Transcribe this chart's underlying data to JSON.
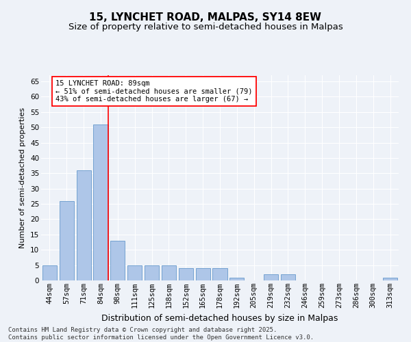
{
  "title": "15, LYNCHET ROAD, MALPAS, SY14 8EW",
  "subtitle": "Size of property relative to semi-detached houses in Malpas",
  "xlabel": "Distribution of semi-detached houses by size in Malpas",
  "ylabel": "Number of semi-detached properties",
  "categories": [
    "44sqm",
    "57sqm",
    "71sqm",
    "84sqm",
    "98sqm",
    "111sqm",
    "125sqm",
    "138sqm",
    "152sqm",
    "165sqm",
    "178sqm",
    "192sqm",
    "205sqm",
    "219sqm",
    "232sqm",
    "246sqm",
    "259sqm",
    "273sqm",
    "286sqm",
    "300sqm",
    "313sqm"
  ],
  "values": [
    5,
    26,
    36,
    51,
    13,
    5,
    5,
    5,
    4,
    4,
    4,
    1,
    0,
    2,
    2,
    0,
    0,
    0,
    0,
    0,
    1
  ],
  "bar_color": "#aec6e8",
  "bar_edge_color": "#6699cc",
  "vline_index": 3,
  "vline_color": "red",
  "annotation_text": "15 LYNCHET ROAD: 89sqm\n← 51% of semi-detached houses are smaller (79)\n43% of semi-detached houses are larger (67) →",
  "ylim_max": 67,
  "yticks": [
    0,
    5,
    10,
    15,
    20,
    25,
    30,
    35,
    40,
    45,
    50,
    55,
    60,
    65
  ],
  "background_color": "#eef2f8",
  "grid_color": "#ffffff",
  "footer_text": "Contains HM Land Registry data © Crown copyright and database right 2025.\nContains public sector information licensed under the Open Government Licence v3.0.",
  "title_fontsize": 11,
  "subtitle_fontsize": 9.5,
  "xlabel_fontsize": 9,
  "ylabel_fontsize": 8,
  "tick_fontsize": 7.5,
  "annot_fontsize": 7.5,
  "footer_fontsize": 6.5
}
